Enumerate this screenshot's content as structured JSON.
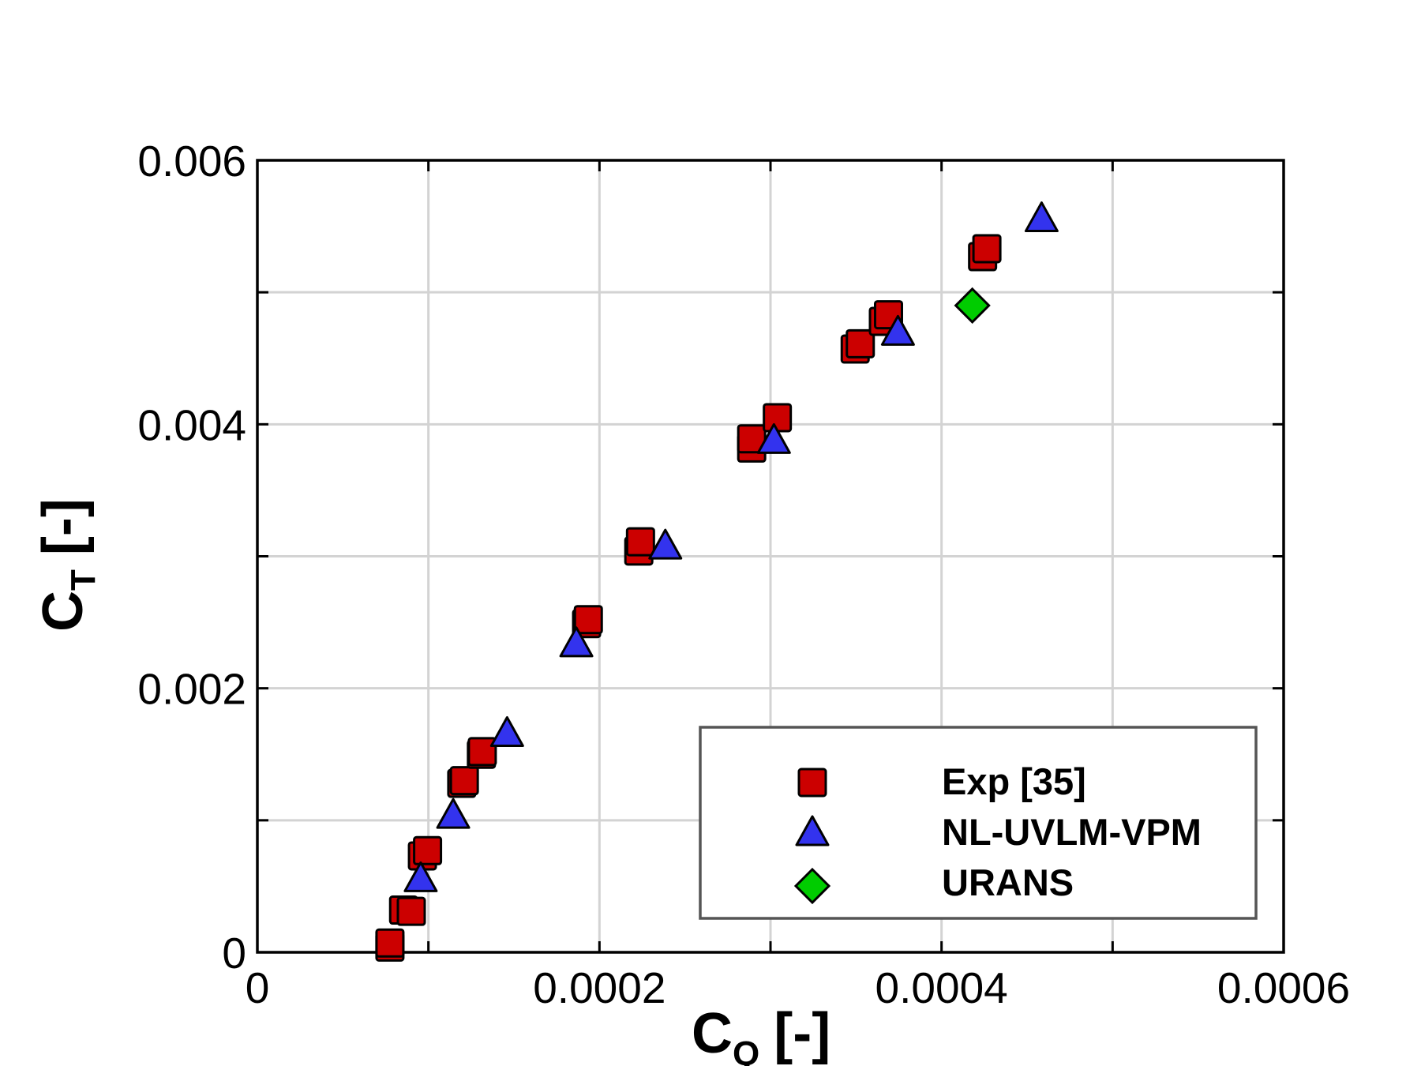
{
  "chart_data": {
    "type": "scatter",
    "xlabel": "C",
    "xlabel_sub": "Q",
    "xlabel_unit": "[-]",
    "ylabel": "C",
    "ylabel_sub": "T",
    "ylabel_unit": "[-]",
    "xlim": [
      0,
      0.0006
    ],
    "ylim": [
      0,
      0.006
    ],
    "x_ticks": [
      {
        "value": 0,
        "label": "0"
      },
      {
        "value": 0.0002,
        "label": "0.0002"
      },
      {
        "value": 0.0004,
        "label": "0.0004"
      },
      {
        "value": 0.0006,
        "label": "0.0006"
      }
    ],
    "y_ticks": [
      {
        "value": 0,
        "label": "0"
      },
      {
        "value": 0.002,
        "label": "0.002"
      },
      {
        "value": 0.004,
        "label": "0.004"
      },
      {
        "value": 0.006,
        "label": "0.006"
      }
    ],
    "x_grid": [
      0.0001,
      0.0002,
      0.0003,
      0.0004,
      0.0005
    ],
    "y_grid": [
      0.001,
      0.002,
      0.003,
      0.004,
      0.005
    ],
    "grid": true,
    "legend_position": "bottom-right",
    "series": [
      {
        "name": "Exp [35]",
        "marker": "square",
        "color": "#cc0000",
        "points": [
          [
            7.75e-05,
            4e-05
          ],
          [
            7.75e-05,
            7e-05
          ],
          [
            8.55e-05,
            0.00032
          ],
          [
            9e-05,
            0.00031
          ],
          [
            9.65e-05,
            0.00073
          ],
          [
            9.95e-05,
            0.00077
          ],
          [
            0.0001195,
            0.00128
          ],
          [
            0.000121,
            0.0013
          ],
          [
            0.000131,
            0.0015
          ],
          [
            0.0001315,
            0.00152
          ],
          [
            0.0001925,
            0.00249
          ],
          [
            0.0001935,
            0.00252
          ],
          [
            0.000223,
            0.00304
          ],
          [
            0.000224,
            0.00311
          ],
          [
            0.000289,
            0.00382
          ],
          [
            0.000289,
            0.00389
          ],
          [
            0.000304,
            0.00405
          ],
          [
            0.0003495,
            0.00457
          ],
          [
            0.0003525,
            0.00461
          ],
          [
            0.000366,
            0.00478
          ],
          [
            0.000369,
            0.00483
          ],
          [
            0.000424,
            0.00527
          ],
          [
            0.0004265,
            0.00533
          ]
        ]
      },
      {
        "name": "NL-UVLM-VPM",
        "marker": "triangle",
        "color": "#3333ee",
        "points": [
          [
            9.55e-05,
            0.00056
          ],
          [
            0.0001145,
            0.00104
          ],
          [
            0.000146,
            0.00166
          ],
          [
            0.0001865,
            0.00234
          ],
          [
            0.0002385,
            0.00308
          ],
          [
            0.000302,
            0.00388
          ],
          [
            0.0003745,
            0.0047
          ],
          [
            0.0004585,
            0.00556
          ]
        ]
      },
      {
        "name": "URANS",
        "marker": "diamond",
        "color": "#00cc00",
        "points": [
          [
            0.000418,
            0.0049
          ]
        ]
      }
    ]
  }
}
